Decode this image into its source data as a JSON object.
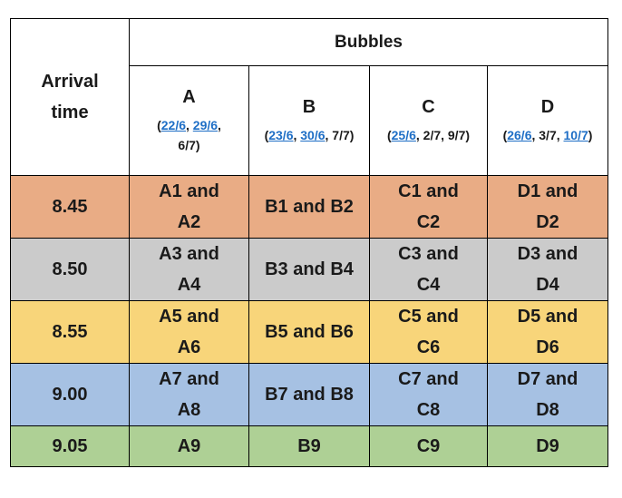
{
  "header": {
    "arrival_label_line1": "Arrival",
    "arrival_label_line2": "time",
    "group_label": "Bubbles",
    "bubbles": [
      {
        "letter": "A",
        "dates": [
          {
            "text": "22/6",
            "link": true
          },
          {
            "text": ", ",
            "link": false
          },
          {
            "text": "29/6",
            "link": true
          },
          {
            "text": ",",
            "link": false
          },
          {
            "text": "6/7",
            "link": false,
            "newline": true
          }
        ]
      },
      {
        "letter": "B",
        "dates": [
          {
            "text": "23/6",
            "link": true
          },
          {
            "text": ", ",
            "link": false
          },
          {
            "text": "30/6",
            "link": true
          },
          {
            "text": ", 7/7",
            "link": false
          }
        ]
      },
      {
        "letter": "C",
        "dates": [
          {
            "text": "25/6",
            "link": true
          },
          {
            "text": ", 2/7, 9/7",
            "link": false
          }
        ]
      },
      {
        "letter": "D",
        "dates": [
          {
            "text": "26/6",
            "link": true
          },
          {
            "text": ", 3/7, ",
            "link": false
          },
          {
            "text": "10/7",
            "link": true
          }
        ]
      }
    ]
  },
  "rows": [
    {
      "time": "8.45",
      "color": "#e9ac85",
      "cells": [
        [
          "A1 and",
          "A2"
        ],
        [
          "B1 and B2"
        ],
        [
          "C1 and",
          "C2"
        ],
        [
          "D1 and",
          "D2"
        ]
      ]
    },
    {
      "time": "8.50",
      "color": "#cbcbcb",
      "cells": [
        [
          "A3 and",
          "A4"
        ],
        [
          "B3 and B4"
        ],
        [
          "C3 and",
          "C4"
        ],
        [
          "D3 and",
          "D4"
        ]
      ]
    },
    {
      "time": "8.55",
      "color": "#f8d57a",
      "cells": [
        [
          "A5 and",
          "A6"
        ],
        [
          "B5 and B6"
        ],
        [
          "C5 and",
          "C6"
        ],
        [
          "D5 and",
          "D6"
        ]
      ]
    },
    {
      "time": "9.00",
      "color": "#a6c1e3",
      "cells": [
        [
          "A7 and",
          "A8"
        ],
        [
          "B7 and B8"
        ],
        [
          "C7 and",
          "C8"
        ],
        [
          "D7 and",
          "D8"
        ]
      ]
    },
    {
      "time": "9.05",
      "color": "#aed095",
      "cells": [
        [
          "A9"
        ],
        [
          "B9"
        ],
        [
          "C9"
        ],
        [
          "D9"
        ]
      ]
    }
  ],
  "colors": {
    "link": "#1f6fc6",
    "border": "#000000"
  }
}
